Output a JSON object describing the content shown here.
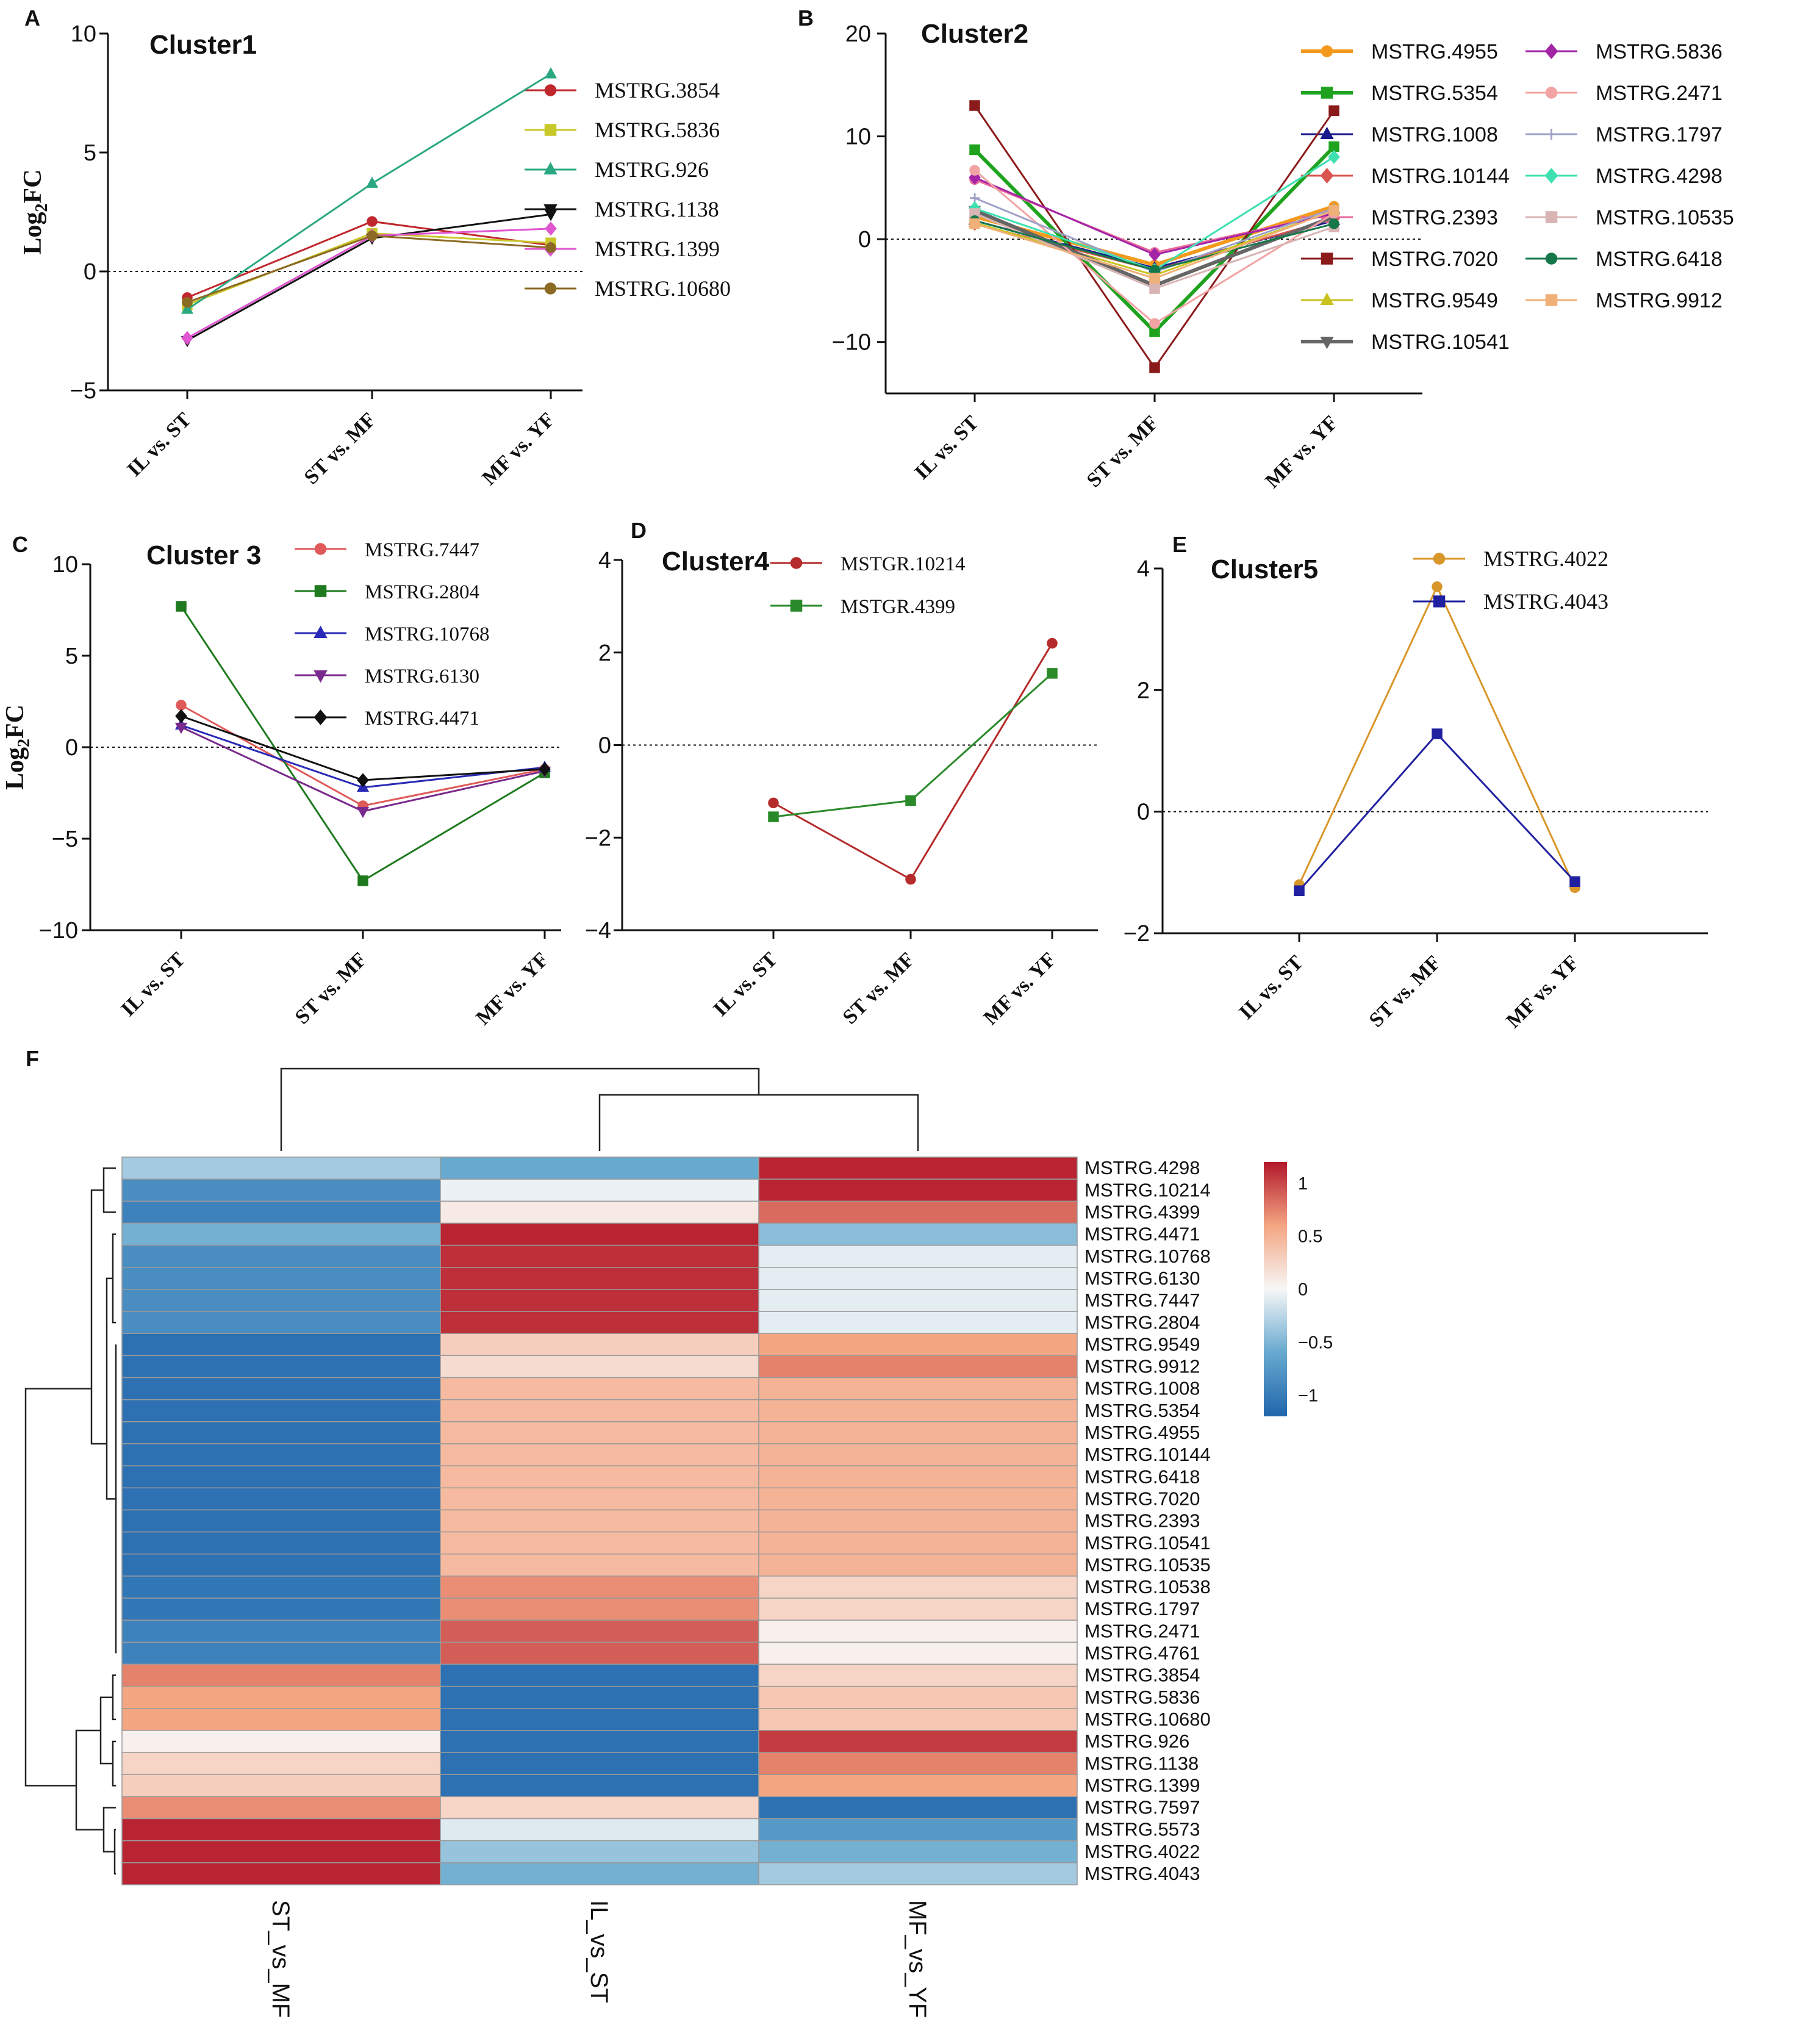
{
  "x_categories": [
    "IL vs. ST",
    "ST vs. MF",
    "MF vs. YF"
  ],
  "y_label": "Log2FC",
  "chart_data": [
    {
      "panel": "A",
      "type": "line",
      "title": "Cluster1",
      "categories": [
        "IL vs. ST",
        "ST vs. MF",
        "MF vs. YF"
      ],
      "ylim": [
        -5,
        10
      ],
      "yticks": [
        -5,
        0,
        5,
        10
      ],
      "ylabel": "Log2FC",
      "series": [
        {
          "name": "MSTRG.3854",
          "color": "#c0282e",
          "marker": "circle",
          "values": [
            -1.1,
            2.1,
            1.1
          ]
        },
        {
          "name": "MSTRG.5836",
          "color": "#c8c82a",
          "marker": "square",
          "values": [
            -1.4,
            1.6,
            1.2
          ]
        },
        {
          "name": "MSTRG.926",
          "color": "#2aa882",
          "marker": "triangle",
          "values": [
            -1.6,
            3.7,
            8.3
          ]
        },
        {
          "name": "MSTRG.1138",
          "color": "#111111",
          "marker": "triangle-down",
          "values": [
            -2.9,
            1.4,
            2.4
          ]
        },
        {
          "name": "MSTRG.1399",
          "color": "#e055d0",
          "marker": "diamond",
          "values": [
            -2.8,
            1.5,
            1.8
          ]
        },
        {
          "name": "MSTRG.10680",
          "color": "#8b6a23",
          "marker": "circle",
          "values": [
            -1.3,
            1.5,
            1.0
          ]
        }
      ]
    },
    {
      "panel": "B",
      "type": "line",
      "title": "Cluster2",
      "categories": [
        "IL vs. ST",
        "ST vs. MF",
        "MF vs. YF"
      ],
      "ylim": [
        -15,
        20
      ],
      "yticks": [
        -10,
        0,
        10,
        20
      ],
      "ylabel": "",
      "series": [
        {
          "name": "MSTRG.4955",
          "color": "#f39a1c",
          "marker": "circle",
          "values": [
            2.2,
            -2.5,
            3.2
          ]
        },
        {
          "name": "MSTRG.5354",
          "color": "#1fa31f",
          "marker": "square",
          "values": [
            8.7,
            -9.0,
            9.0
          ]
        },
        {
          "name": "MSTRG.1008",
          "color": "#1a1a8c",
          "marker": "triangle",
          "values": [
            1.8,
            -2.8,
            1.8
          ]
        },
        {
          "name": "MSTRG.10144",
          "color": "#d9534f",
          "marker": "diamond",
          "values": [
            1.5,
            -3.0,
            2.0
          ]
        },
        {
          "name": "MSTRG.2393",
          "color": "#e8689a",
          "marker": "circle",
          "values": [
            5.8,
            -1.3,
            2.5
          ]
        },
        {
          "name": "MSTRG.7020",
          "color": "#8b1a1a",
          "marker": "square",
          "values": [
            13.0,
            -12.5,
            12.5
          ]
        },
        {
          "name": "MSTRG.9549",
          "color": "#c9c31f",
          "marker": "triangle",
          "values": [
            1.6,
            -3.5,
            2.8
          ]
        },
        {
          "name": "MSTRG.10541",
          "color": "#666666",
          "marker": "triangle-down",
          "values": [
            2.8,
            -4.5,
            2.2
          ]
        },
        {
          "name": "MSTRG.5836",
          "color": "#a424a6",
          "marker": "diamond",
          "values": [
            6.0,
            -1.5,
            2.5
          ]
        },
        {
          "name": "MSTRG.2471",
          "color": "#f2a3a3",
          "marker": "circle",
          "values": [
            6.7,
            -8.2,
            2.5
          ]
        },
        {
          "name": "MSTRG.1797",
          "color": "#9fa0c8",
          "marker": "plus",
          "values": [
            4.0,
            -3.2,
            3.0
          ]
        },
        {
          "name": "MSTRG.4298",
          "color": "#3fe0b0",
          "marker": "diamond",
          "values": [
            3.0,
            -3.0,
            8.0
          ]
        },
        {
          "name": "MSTRG.10535",
          "color": "#d8b4b4",
          "marker": "square",
          "values": [
            2.5,
            -4.8,
            1.2
          ]
        },
        {
          "name": "MSTRG.6418",
          "color": "#16784a",
          "marker": "circle",
          "values": [
            1.8,
            -3.0,
            1.5
          ]
        },
        {
          "name": "MSTRG.9912",
          "color": "#f0b079",
          "marker": "square",
          "values": [
            1.5,
            -3.8,
            2.8
          ]
        }
      ]
    },
    {
      "panel": "C",
      "type": "line",
      "title": "Cluster 3",
      "categories": [
        "IL vs. ST",
        "ST vs. MF",
        "MF vs. YF"
      ],
      "ylim": [
        -10,
        10
      ],
      "yticks": [
        -10,
        -5,
        0,
        5,
        10
      ],
      "ylabel": "Log2FC",
      "series": [
        {
          "name": "MSTRG.7447",
          "color": "#e05a5a",
          "marker": "circle",
          "values": [
            2.3,
            -3.2,
            -1.2
          ]
        },
        {
          "name": "MSTRG.2804",
          "color": "#1f7a1f",
          "marker": "square",
          "values": [
            7.7,
            -7.3,
            -1.4
          ]
        },
        {
          "name": "MSTRG.10768",
          "color": "#2a2ab8",
          "marker": "triangle",
          "values": [
            1.2,
            -2.2,
            -1.1
          ]
        },
        {
          "name": "MSTRG.6130",
          "color": "#7a2a8c",
          "marker": "triangle-down",
          "values": [
            1.1,
            -3.5,
            -1.3
          ]
        },
        {
          "name": "MSTRG.4471",
          "color": "#111111",
          "marker": "diamond",
          "values": [
            1.7,
            -1.8,
            -1.2
          ]
        }
      ]
    },
    {
      "panel": "D",
      "type": "line",
      "title": "Cluster4",
      "categories": [
        "IL vs. ST",
        "ST vs. MF",
        "MF vs. YF"
      ],
      "ylim": [
        -4,
        4
      ],
      "yticks": [
        -4,
        -2,
        0,
        2,
        4
      ],
      "ylabel": "",
      "series": [
        {
          "name": "MSTGR.10214",
          "color": "#b52a2a",
          "marker": "circle",
          "values": [
            -1.25,
            -2.9,
            2.2
          ]
        },
        {
          "name": "MSTGR.4399",
          "color": "#2a8a2a",
          "marker": "square",
          "values": [
            -1.55,
            -1.2,
            1.55
          ]
        }
      ]
    },
    {
      "panel": "E",
      "type": "line",
      "title": "Cluster5",
      "categories": [
        "IL vs. ST",
        "ST vs. MF",
        "MF vs. YF"
      ],
      "ylim": [
        -2,
        4
      ],
      "yticks": [
        -2,
        0,
        2,
        4
      ],
      "ylabel": "",
      "series": [
        {
          "name": "MSTRG.4022",
          "color": "#d9962a",
          "marker": "circle",
          "values": [
            -1.2,
            3.7,
            -1.25
          ]
        },
        {
          "name": "MSTRG.4043",
          "color": "#2020a0",
          "marker": "square",
          "values": [
            -1.3,
            1.28,
            -1.15
          ]
        }
      ]
    },
    {
      "panel": "F",
      "type": "heatmap",
      "columns": [
        "ST_vs_MF",
        "IL_vs_ST",
        "MF_vs_YF"
      ],
      "rows": [
        "MSTRG.4298",
        "MSTRG.10214",
        "MSTRG.4399",
        "MSTRG.4471",
        "MSTRG.10768",
        "MSTRG.6130",
        "MSTRG.7447",
        "MSTRG.2804",
        "MSTRG.9549",
        "MSTRG.9912",
        "MSTRG.1008",
        "MSTRG.5354",
        "MSTRG.4955",
        "MSTRG.10144",
        "MSTRG.6418",
        "MSTRG.7020",
        "MSTRG.2393",
        "MSTRG.10541",
        "MSTRG.10535",
        "MSTRG.10538",
        "MSTRG.1797",
        "MSTRG.2471",
        "MSTRG.4761",
        "MSTRG.3854",
        "MSTRG.5836",
        "MSTRG.10680",
        "MSTRG.926",
        "MSTRG.1138",
        "MSTRG.1399",
        "MSTRG.7597",
        "MSTRG.5573",
        "MSTRG.4022",
        "MSTRG.4043"
      ],
      "values": [
        [
          -0.35,
          -0.6,
          1.15
        ],
        [
          -0.85,
          -0.05,
          1.15
        ],
        [
          -0.95,
          0.1,
          0.85
        ],
        [
          -0.55,
          1.15,
          -0.45
        ],
        [
          -0.85,
          1.1,
          -0.08
        ],
        [
          -0.85,
          1.1,
          -0.08
        ],
        [
          -0.85,
          1.1,
          -0.08
        ],
        [
          -0.85,
          1.1,
          -0.08
        ],
        [
          -1.1,
          0.3,
          0.6
        ],
        [
          -1.1,
          0.2,
          0.75
        ],
        [
          -1.1,
          0.45,
          0.5
        ],
        [
          -1.1,
          0.45,
          0.5
        ],
        [
          -1.1,
          0.45,
          0.5
        ],
        [
          -1.1,
          0.45,
          0.5
        ],
        [
          -1.1,
          0.45,
          0.5
        ],
        [
          -1.1,
          0.45,
          0.5
        ],
        [
          -1.1,
          0.45,
          0.5
        ],
        [
          -1.1,
          0.45,
          0.5
        ],
        [
          -1.1,
          0.45,
          0.5
        ],
        [
          -1.05,
          0.7,
          0.25
        ],
        [
          -1.05,
          0.7,
          0.25
        ],
        [
          -0.95,
          0.9,
          0.05
        ],
        [
          -0.95,
          0.9,
          0.05
        ],
        [
          0.75,
          -1.1,
          0.25
        ],
        [
          0.6,
          -1.1,
          0.35
        ],
        [
          0.6,
          -1.1,
          0.35
        ],
        [
          0.05,
          -1.1,
          1.05
        ],
        [
          0.25,
          -1.1,
          0.75
        ],
        [
          0.3,
          -1.1,
          0.6
        ],
        [
          0.7,
          0.25,
          -1.1
        ],
        [
          1.15,
          -0.1,
          -0.75
        ],
        [
          1.15,
          -0.4,
          -0.55
        ],
        [
          1.15,
          -0.55,
          -0.35
        ]
      ],
      "scale_ticks": [
        "1",
        "0.5",
        "0",
        "-0.5",
        "-1"
      ],
      "scale_range": [
        -1.2,
        1.2
      ]
    }
  ]
}
